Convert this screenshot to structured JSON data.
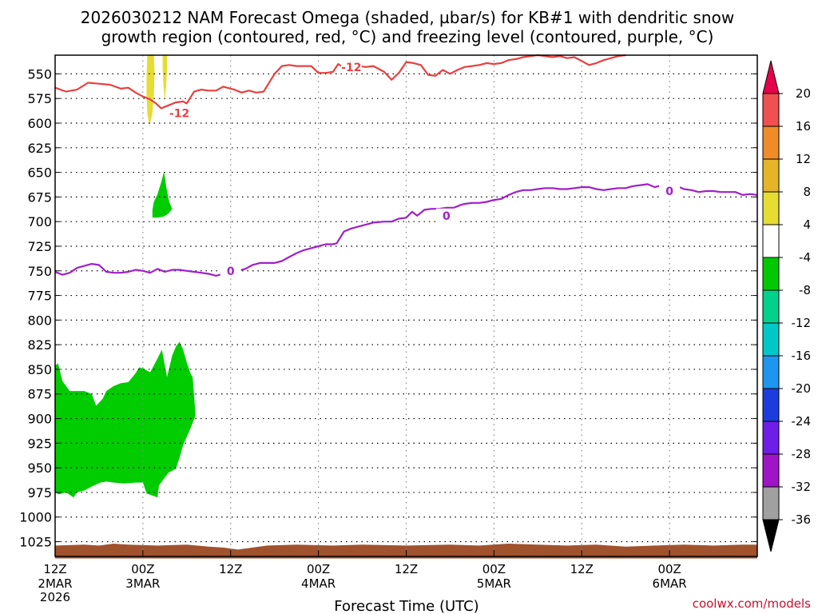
{
  "chart_data": {
    "type": "area",
    "title_line1": "2026030212 NAM Forecast Omega (shaded, µbar/s) for KB#1 with dendritic snow",
    "title_line2": "growth region (contoured, red, °C) and freezing level (contoured, purple, °C)",
    "xlabel": "Forecast Time (UTC)",
    "credit": "coolwx.com/models",
    "xlim_hours": [
      0,
      96
    ],
    "ylim_hPa": [
      1040,
      531
    ],
    "y_ticks": [
      550,
      575,
      600,
      625,
      650,
      675,
      700,
      725,
      750,
      775,
      800,
      825,
      850,
      875,
      900,
      925,
      950,
      975,
      1000,
      1025
    ],
    "x_ticks": [
      {
        "hour": 0,
        "label": "12Z",
        "sub": "2MAR",
        "sub2": "2026"
      },
      {
        "hour": 12,
        "label": "00Z",
        "sub": "3MAR"
      },
      {
        "hour": 24,
        "label": "12Z"
      },
      {
        "hour": 36,
        "label": "00Z",
        "sub": "4MAR"
      },
      {
        "hour": 48,
        "label": "12Z"
      },
      {
        "hour": 60,
        "label": "00Z",
        "sub": "5MAR"
      },
      {
        "hour": 72,
        "label": "12Z"
      },
      {
        "hour": 84,
        "label": "00Z",
        "sub": "6MAR"
      }
    ],
    "grid": true,
    "colorbar": {
      "levels": [
        20,
        16,
        12,
        8,
        4,
        -4,
        -8,
        -12,
        -16,
        -20,
        -24,
        -28,
        -32,
        -36
      ],
      "colors": [
        "#e6004c",
        "#f05050",
        "#f08c28",
        "#e6b428",
        "#e6dc32",
        "#ffffff",
        "#00c800",
        "#00d28c",
        "#00c8c8",
        "#1e96f0",
        "#1e3cdc",
        "#6e1ee6",
        "#a014c8",
        "#a0a0a0",
        "#000000"
      ]
    },
    "series": [
      {
        "name": "-12",
        "kind": "contour",
        "color": "#e84040",
        "labels": [
          {
            "x": 17.0,
            "y": 590
          },
          {
            "x": 40.5,
            "y": 543
          }
        ],
        "points": [
          [
            0,
            564
          ],
          [
            1.5,
            568
          ],
          [
            3,
            566
          ],
          [
            4.5,
            559
          ],
          [
            6,
            560
          ],
          [
            7.5,
            561
          ],
          [
            9,
            565
          ],
          [
            10,
            564
          ],
          [
            11,
            569
          ],
          [
            12,
            573
          ],
          [
            13,
            576
          ],
          [
            13.8,
            580
          ],
          [
            14.5,
            585
          ],
          [
            15.5,
            582
          ],
          [
            16.5,
            579
          ],
          [
            17.5,
            578
          ],
          [
            18,
            580
          ],
          [
            19,
            568
          ],
          [
            20,
            566
          ],
          [
            21,
            567
          ],
          [
            22,
            567
          ],
          [
            23,
            563
          ],
          [
            24.5,
            566
          ],
          [
            25.5,
            569
          ],
          [
            26.5,
            567
          ],
          [
            27.5,
            569
          ],
          [
            28.5,
            568
          ],
          [
            30,
            550
          ],
          [
            31,
            542
          ],
          [
            32,
            541
          ],
          [
            33,
            542
          ],
          [
            34,
            542
          ],
          [
            35,
            542
          ],
          [
            36,
            549
          ],
          [
            37,
            549
          ],
          [
            38,
            548
          ],
          [
            38.7,
            540
          ],
          [
            39.5,
            544
          ],
          [
            40.5,
            543
          ],
          [
            41.5,
            542
          ],
          [
            42.5,
            543
          ],
          [
            43.5,
            542
          ],
          [
            45,
            548
          ],
          [
            46,
            556
          ],
          [
            47,
            549
          ],
          [
            48,
            538
          ],
          [
            49,
            539
          ],
          [
            50,
            541
          ],
          [
            51,
            551
          ],
          [
            52,
            552
          ],
          [
            53,
            546
          ],
          [
            54,
            550
          ],
          [
            55,
            546
          ],
          [
            56,
            543
          ],
          [
            57,
            542
          ],
          [
            58,
            541
          ],
          [
            59,
            539
          ],
          [
            60,
            540
          ],
          [
            61,
            539
          ],
          [
            62,
            536
          ],
          [
            63,
            535
          ],
          [
            64,
            533
          ],
          [
            65,
            532
          ],
          [
            66,
            531
          ],
          [
            67,
            532
          ],
          [
            68,
            533
          ],
          [
            69,
            532
          ],
          [
            70,
            534
          ],
          [
            71,
            533
          ],
          [
            72,
            537
          ],
          [
            73,
            541
          ],
          [
            74,
            539
          ],
          [
            75,
            536
          ],
          [
            76,
            534
          ],
          [
            77,
            532
          ],
          [
            78,
            531
          ]
        ]
      },
      {
        "name": "0",
        "kind": "contour",
        "color": "#a020c8",
        "labels": [
          {
            "x": 24.0,
            "y": 750
          },
          {
            "x": 53.5,
            "y": 694
          },
          {
            "x": 84.0,
            "y": 669
          }
        ],
        "points": [
          [
            0,
            751
          ],
          [
            1,
            754
          ],
          [
            2,
            752
          ],
          [
            3,
            747
          ],
          [
            4,
            745
          ],
          [
            5,
            743
          ],
          [
            6,
            744
          ],
          [
            7,
            751
          ],
          [
            8,
            752
          ],
          [
            9,
            752
          ],
          [
            10,
            751
          ],
          [
            11,
            749
          ],
          [
            12,
            750
          ],
          [
            13,
            752
          ],
          [
            14,
            748
          ],
          [
            15,
            751
          ],
          [
            16,
            749
          ],
          [
            17,
            749
          ],
          [
            18,
            750
          ],
          [
            19,
            751
          ],
          [
            20,
            752
          ],
          [
            21,
            753
          ],
          [
            22,
            755
          ],
          [
            23,
            753
          ],
          [
            24,
            750
          ],
          [
            25,
            750
          ],
          [
            26,
            748
          ],
          [
            27,
            744
          ],
          [
            28,
            742
          ],
          [
            29,
            742
          ],
          [
            30,
            742
          ],
          [
            31,
            740
          ],
          [
            32,
            736
          ],
          [
            33,
            732
          ],
          [
            34,
            729
          ],
          [
            35,
            727
          ],
          [
            36,
            725
          ],
          [
            37,
            723
          ],
          [
            38,
            723
          ],
          [
            38.5,
            722
          ],
          [
            39.5,
            710
          ],
          [
            40.5,
            707
          ],
          [
            41.5,
            705
          ],
          [
            42.5,
            703
          ],
          [
            43.5,
            701
          ],
          [
            45,
            700
          ],
          [
            46,
            700
          ],
          [
            47,
            697
          ],
          [
            48,
            696
          ],
          [
            48.8,
            690
          ],
          [
            49.5,
            694
          ],
          [
            50.5,
            688
          ],
          [
            51.5,
            687
          ],
          [
            52.5,
            687
          ],
          [
            53.5,
            686
          ],
          [
            54.5,
            686
          ],
          [
            55.5,
            683
          ],
          [
            56,
            682
          ],
          [
            57,
            681
          ],
          [
            58,
            681
          ],
          [
            59,
            680
          ],
          [
            60,
            678
          ],
          [
            61,
            677
          ],
          [
            62,
            673
          ],
          [
            63,
            670
          ],
          [
            64,
            668
          ],
          [
            65,
            668
          ],
          [
            66,
            667
          ],
          [
            67,
            666
          ],
          [
            68,
            666
          ],
          [
            69,
            667
          ],
          [
            70,
            667
          ],
          [
            71,
            666
          ],
          [
            72,
            665
          ],
          [
            73,
            665
          ],
          [
            74,
            667
          ],
          [
            75,
            668
          ],
          [
            76,
            667
          ],
          [
            77,
            666
          ],
          [
            78,
            666
          ],
          [
            79,
            664
          ],
          [
            80,
            663
          ],
          [
            81,
            662
          ],
          [
            82,
            665
          ],
          [
            83,
            663
          ],
          [
            84,
            664
          ],
          [
            85,
            664
          ],
          [
            86,
            667
          ],
          [
            87,
            668
          ],
          [
            88,
            670
          ],
          [
            89,
            669
          ],
          [
            90,
            669
          ],
          [
            91,
            670
          ],
          [
            92,
            670
          ],
          [
            93,
            670
          ],
          [
            94,
            673
          ],
          [
            95,
            672
          ],
          [
            96,
            673
          ]
        ]
      },
      {
        "name": "omega -4 to -8 lower",
        "kind": "shaded",
        "color": "#00cc00",
        "points": [
          [
            0,
            846
          ],
          [
            0.4,
            844
          ],
          [
            1,
            862
          ],
          [
            1.5,
            867
          ],
          [
            2,
            872
          ],
          [
            3,
            872
          ],
          [
            4,
            872
          ],
          [
            5,
            875
          ],
          [
            5.6,
            887
          ],
          [
            6.5,
            880
          ],
          [
            7,
            872
          ],
          [
            8,
            867
          ],
          [
            9,
            864
          ],
          [
            10,
            863
          ],
          [
            11,
            854
          ],
          [
            11.5,
            848
          ],
          [
            12,
            849
          ],
          [
            13,
            853
          ],
          [
            14,
            839
          ],
          [
            14.6,
            830
          ],
          [
            15.3,
            858
          ],
          [
            16,
            836
          ],
          [
            16.5,
            827
          ],
          [
            17,
            822
          ],
          [
            17.5,
            830
          ],
          [
            18,
            843
          ],
          [
            18.5,
            854
          ],
          [
            18.8,
            858
          ],
          [
            19,
            877
          ],
          [
            19.2,
            897
          ],
          [
            18.5,
            910
          ],
          [
            17.5,
            927
          ],
          [
            17,
            940
          ],
          [
            16.5,
            951
          ],
          [
            15.5,
            955
          ],
          [
            14.2,
            968
          ],
          [
            14,
            980
          ],
          [
            12.5,
            976
          ],
          [
            12,
            965
          ],
          [
            11,
            965
          ],
          [
            9.5,
            966
          ],
          [
            8,
            965
          ],
          [
            7,
            964
          ],
          [
            6.2,
            965
          ],
          [
            5,
            969
          ],
          [
            4,
            973
          ],
          [
            3,
            975
          ],
          [
            2.5,
            980
          ],
          [
            1.5,
            975
          ],
          [
            0.5,
            977
          ],
          [
            0,
            975
          ]
        ]
      },
      {
        "name": "omega -4 to -8 upper",
        "kind": "shaded",
        "color": "#00cc00",
        "points": [
          [
            13.3,
            696
          ],
          [
            13.3,
            688
          ],
          [
            13.5,
            680
          ],
          [
            14,
            672
          ],
          [
            14.5,
            660
          ],
          [
            14.9,
            649
          ],
          [
            15.2,
            665
          ],
          [
            15.6,
            680
          ],
          [
            16,
            687
          ],
          [
            15.5,
            692
          ],
          [
            14.8,
            695
          ],
          [
            14,
            696
          ]
        ]
      },
      {
        "name": "omega 4 to 8 left",
        "kind": "shaded",
        "color": "#e6dc32",
        "points": [
          [
            12.6,
            531
          ],
          [
            13.5,
            531
          ],
          [
            13.6,
            548
          ],
          [
            13.5,
            570
          ],
          [
            13.3,
            590
          ],
          [
            12.9,
            603
          ],
          [
            12.6,
            590
          ],
          [
            12.5,
            570
          ],
          [
            12.5,
            550
          ]
        ]
      },
      {
        "name": "omega 4 to 8 right",
        "kind": "shaded",
        "color": "#e6dc32",
        "points": [
          [
            14.7,
            531
          ],
          [
            15.3,
            531
          ],
          [
            15.3,
            545
          ],
          [
            15.2,
            560
          ],
          [
            15,
            578
          ],
          [
            14.8,
            560
          ],
          [
            14.7,
            545
          ]
        ]
      },
      {
        "name": "terrain",
        "kind": "shaded",
        "color": "#a0522d",
        "points": [
          [
            0,
            1029
          ],
          [
            4,
            1028
          ],
          [
            6,
            1029
          ],
          [
            8,
            1027
          ],
          [
            10,
            1028
          ],
          [
            14,
            1029
          ],
          [
            18,
            1028
          ],
          [
            21,
            1030
          ],
          [
            23,
            1031
          ],
          [
            25,
            1033
          ],
          [
            27,
            1031
          ],
          [
            29,
            1029
          ],
          [
            33,
            1028
          ],
          [
            38,
            1029
          ],
          [
            42,
            1028
          ],
          [
            48,
            1029
          ],
          [
            54,
            1028
          ],
          [
            58,
            1029
          ],
          [
            62,
            1027
          ],
          [
            66,
            1028
          ],
          [
            70,
            1029
          ],
          [
            74,
            1028
          ],
          [
            78,
            1030
          ],
          [
            82,
            1029
          ],
          [
            86,
            1028
          ],
          [
            90,
            1029
          ],
          [
            94,
            1028
          ],
          [
            96,
            1028
          ],
          [
            96,
            1042
          ],
          [
            0,
            1042
          ]
        ]
      }
    ]
  }
}
